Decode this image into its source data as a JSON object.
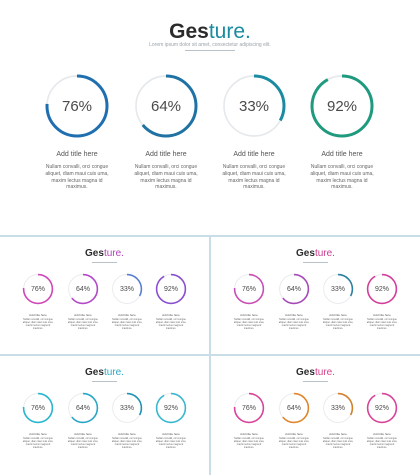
{
  "title": {
    "dark": "Ges",
    "accent": "ture."
  },
  "subtitle": "Lorem ipsum dolor sit amet, consectetur adipiscing elit.",
  "main": {
    "items": [
      {
        "percent": "76%",
        "value": 0.76,
        "color": "#1f6fb0",
        "label": "Add title here",
        "lines": [
          "Nullam convalli, orci congue",
          "aliquet, diam maui cuis uma,",
          "maxim lectus magna id",
          "maximus."
        ]
      },
      {
        "percent": "64%",
        "value": 0.64,
        "color": "#1f72a3",
        "label": "Add title here",
        "lines": [
          "Nullam convalli, orci congue",
          "aliquet, diam maui cuis uma,",
          "maxim lectus magna id",
          "maximus."
        ]
      },
      {
        "percent": "33%",
        "value": 0.33,
        "color": "#1a8ba0",
        "label": "Add title here",
        "lines": [
          "Nullam convalli, orci congue",
          "aliquet, diam maui cuis uma,",
          "maxim lectus magna id",
          "maximus."
        ]
      },
      {
        "percent": "92%",
        "value": 0.92,
        "color": "#1f9a7e",
        "label": "Add title here",
        "lines": [
          "Nullam convalli, orci congue",
          "aliquet, diam maui cuis uma,",
          "maxim lectus magna id",
          "maximus."
        ]
      }
    ]
  },
  "variants": [
    {
      "accent": "#b23fb8",
      "items": [
        {
          "percent": "76%",
          "value": 0.76,
          "color": "#cf48b8",
          "label": "Add title here"
        },
        {
          "percent": "64%",
          "value": 0.64,
          "color": "#b448c8",
          "label": "Add title here"
        },
        {
          "percent": "33%",
          "value": 0.33,
          "color": "#5b7fd0",
          "label": "Add title here"
        },
        {
          "percent": "92%",
          "value": 0.92,
          "color": "#8a4fcf",
          "label": "Add title here"
        }
      ],
      "lines": [
        "Nullam convalli, orci congue",
        "aliquet, diam maui cuis uma,",
        "maxim lectus magna id",
        "maximus."
      ]
    },
    {
      "accent": "#c93a8f",
      "items": [
        {
          "percent": "76%",
          "value": 0.76,
          "color": "#c84fb5",
          "label": "Add title here"
        },
        {
          "percent": "64%",
          "value": 0.64,
          "color": "#a64ab8",
          "label": "Add title here"
        },
        {
          "percent": "33%",
          "value": 0.33,
          "color": "#2a7fa0",
          "label": "Add title here"
        },
        {
          "percent": "92%",
          "value": 0.92,
          "color": "#d23f9a",
          "label": "Add title here"
        }
      ],
      "lines": [
        "Nullam convalli, orci congue",
        "aliquet, diam maui cuis uma,",
        "maxim lectus magna id",
        "maximus."
      ]
    },
    {
      "accent": "#2aa8c4",
      "items": [
        {
          "percent": "76%",
          "value": 0.76,
          "color": "#27b5cf",
          "label": "Add title here"
        },
        {
          "percent": "64%",
          "value": 0.64,
          "color": "#2aa6c6",
          "label": "Add title here"
        },
        {
          "percent": "33%",
          "value": 0.33,
          "color": "#1d93b6",
          "label": "Add title here"
        },
        {
          "percent": "92%",
          "value": 0.92,
          "color": "#3ab7cf",
          "label": "Add title here"
        }
      ],
      "lines": [
        "Nullam convalli, orci congue",
        "aliquet, diam maui cuis uma,",
        "maxim lectus magna id",
        "maximus."
      ]
    },
    {
      "accent": "#d63f8a",
      "items": [
        {
          "percent": "76%",
          "value": 0.76,
          "color": "#d8449a",
          "label": "Add title here"
        },
        {
          "percent": "64%",
          "value": 0.64,
          "color": "#e0862c",
          "label": "Add title here"
        },
        {
          "percent": "33%",
          "value": 0.33,
          "color": "#d2802a",
          "label": "Add title here"
        },
        {
          "percent": "92%",
          "value": 0.92,
          "color": "#d8449a",
          "label": "Add title here"
        }
      ],
      "lines": [
        "Nullam convalli, orci congue",
        "aliquet, diam maui cuis uma,",
        "maxim lectus magna id",
        "maximus."
      ]
    }
  ]
}
